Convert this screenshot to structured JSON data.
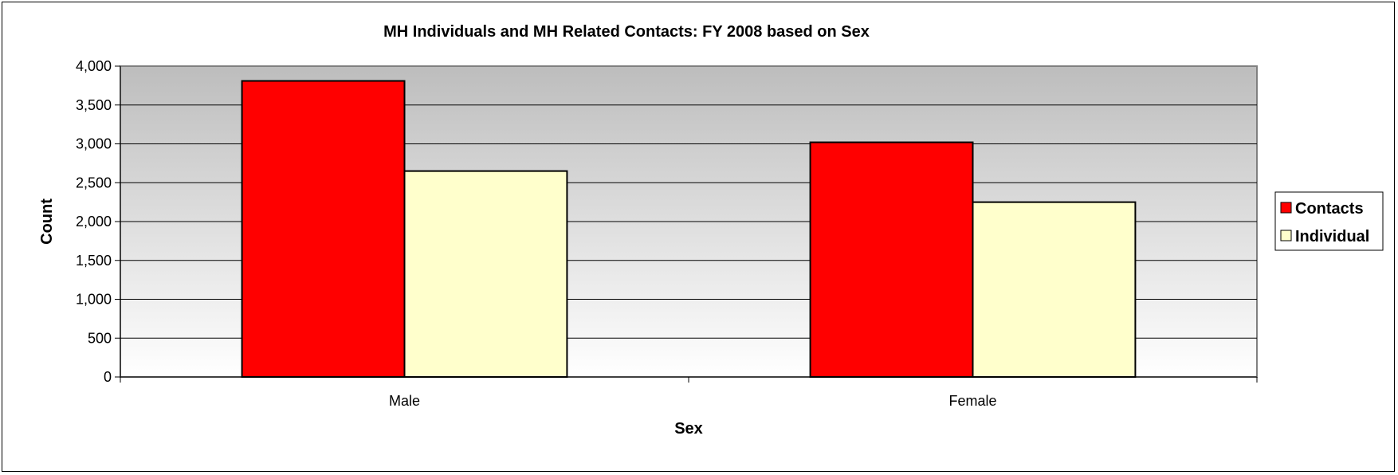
{
  "chart_data": {
    "type": "bar",
    "title": "MH Individuals and MH Related Contacts: FY 2008 based on Sex",
    "xlabel": "Sex",
    "ylabel": "Count",
    "categories": [
      "Male",
      "Female"
    ],
    "series": [
      {
        "name": "Contacts",
        "values": [
          3810,
          3020
        ],
        "color": "#ff0000"
      },
      {
        "name": "Individual",
        "values": [
          2650,
          2250
        ],
        "color": "#ffffcc"
      }
    ],
    "ylim": [
      0,
      4000
    ],
    "yticks": [
      0,
      500,
      1000,
      1500,
      2000,
      2500,
      3000,
      3500,
      4000
    ],
    "ytick_labels": [
      "0",
      "500",
      "1,000",
      "1,500",
      "2,000",
      "2,500",
      "3,000",
      "3,500",
      "4,000"
    ],
    "grid": true,
    "legend": "right",
    "plot_background": "gray-to-white gradient"
  }
}
